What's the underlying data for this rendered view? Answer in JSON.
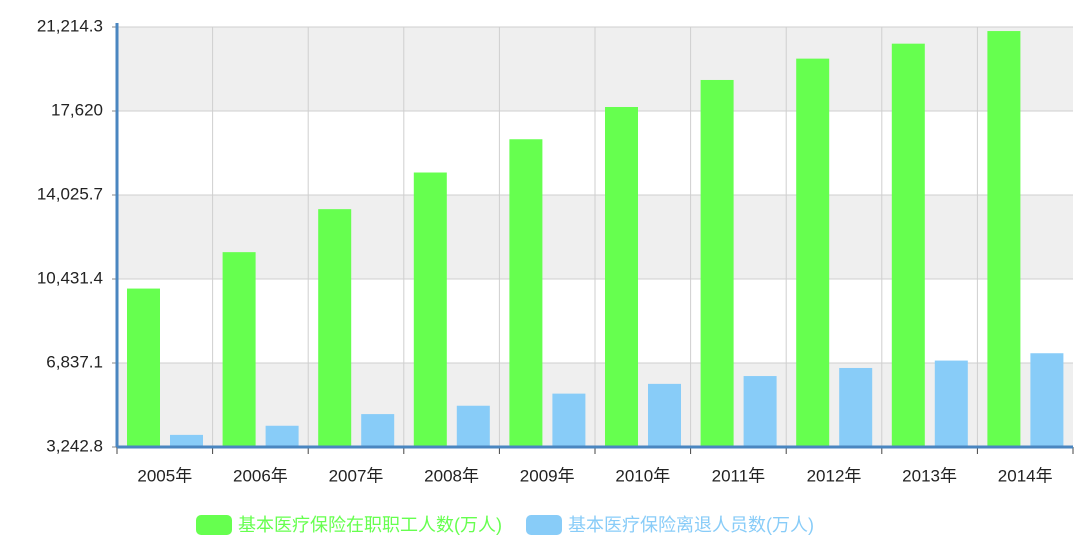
{
  "chart_data": {
    "type": "bar",
    "categories": [
      "2005年",
      "2006年",
      "2007年",
      "2008年",
      "2009年",
      "2010年",
      "2011年",
      "2012年",
      "2013年",
      "2014年"
    ],
    "series": [
      {
        "name": "基本医疗保险在职职工人数(万人)",
        "color": "#66ff4f",
        "values": [
          10022,
          11580,
          13420,
          14988,
          16411,
          17791,
          18948,
          19861,
          20501,
          21041
        ]
      },
      {
        "name": "基本医疗保险离退人员数(万人)",
        "color": "#88ccf8",
        "values": [
          3761,
          4152,
          4651,
          5008,
          5527,
          5944,
          6279,
          6624,
          6941,
          7255
        ]
      }
    ],
    "ylim": [
      3242.8,
      21214.3
    ],
    "yticks": [
      {
        "value": 3242.8,
        "label": "3,242.8"
      },
      {
        "value": 6837.1,
        "label": "6,837.1"
      },
      {
        "value": 10431.4,
        "label": "10,431.4"
      },
      {
        "value": 14025.7,
        "label": "14,025.7"
      },
      {
        "value": 17620,
        "label": "17,620"
      },
      {
        "value": 21214.3,
        "label": "21,214.3"
      }
    ],
    "grid": true
  }
}
